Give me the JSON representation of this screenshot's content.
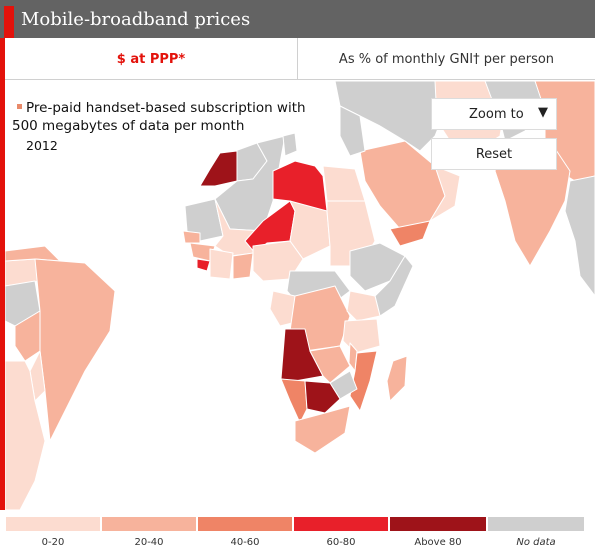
{
  "title": "Mobile-broadband prices",
  "tabs": [
    {
      "label": "$ at PPP*",
      "active": true
    },
    {
      "label": "As % of monthly GNI† per person",
      "active": false
    }
  ],
  "description": {
    "line1": "Pre-paid handset-based subscription with",
    "line2": "500 megabytes of data per month",
    "year": "2012"
  },
  "controls": {
    "zoom_label": "Zoom to",
    "zoom_arrow": "▼",
    "reset_label": "Reset"
  },
  "legend": [
    {
      "label": "0-20",
      "color": "#fcdcd0"
    },
    {
      "label": "20-40",
      "color": "#f7b39c"
    },
    {
      "label": "40-60",
      "color": "#ef8466"
    },
    {
      "label": "60-80",
      "color": "#e8202a"
    },
    {
      "label": "Above 80",
      "color": "#9e1319"
    },
    {
      "label": "No data",
      "color": "#cfcfcf"
    }
  ],
  "colors": {
    "accent": "#e3120b",
    "title_bar": "#636363",
    "ocean": "#ffffff",
    "country_border": "#ffffff"
  },
  "icons": {
    "zoom_arrow": "chevron-down-icon"
  },
  "map_regions": [
    {
      "name": "Western Sahara",
      "bin": "Above 80"
    },
    {
      "name": "Libya",
      "bin": "60-80"
    },
    {
      "name": "Niger",
      "bin": "60-80"
    },
    {
      "name": "Sierra Leone",
      "bin": "60-80"
    },
    {
      "name": "Angola",
      "bin": "Above 80"
    },
    {
      "name": "Botswana",
      "bin": "Above 80"
    },
    {
      "name": "Mozambique",
      "bin": "40-60"
    },
    {
      "name": "Namibia",
      "bin": "40-60"
    },
    {
      "name": "Yemen",
      "bin": "40-60"
    },
    {
      "name": "Nigeria",
      "bin": "0-20"
    },
    {
      "name": "South Africa",
      "bin": "20-40"
    },
    {
      "name": "Algeria",
      "bin": "No data"
    },
    {
      "name": "Egypt",
      "bin": "0-20"
    },
    {
      "name": "Sudan",
      "bin": "0-20"
    },
    {
      "name": "Chad",
      "bin": "0-20"
    },
    {
      "name": "Ethiopia",
      "bin": "No data"
    },
    {
      "name": "Kenya",
      "bin": "0-20"
    },
    {
      "name": "Tanzania",
      "bin": "0-20"
    },
    {
      "name": "Madagascar",
      "bin": "20-40"
    },
    {
      "name": "DR Congo",
      "bin": "20-40"
    },
    {
      "name": "Zambia",
      "bin": "20-40"
    },
    {
      "name": "Zimbabwe",
      "bin": "No data"
    },
    {
      "name": "Mali",
      "bin": "0-20"
    },
    {
      "name": "Mauritania",
      "bin": "No data"
    },
    {
      "name": "Saudi Arabia",
      "bin": "20-40"
    },
    {
      "name": "India",
      "bin": "20-40"
    },
    {
      "name": "Pakistan",
      "bin": "No data"
    },
    {
      "name": "Iran",
      "bin": "0-20"
    },
    {
      "name": "Brazil",
      "bin": "20-40"
    },
    {
      "name": "Peru",
      "bin": "No data"
    },
    {
      "name": "Colombia",
      "bin": "0-20"
    }
  ]
}
